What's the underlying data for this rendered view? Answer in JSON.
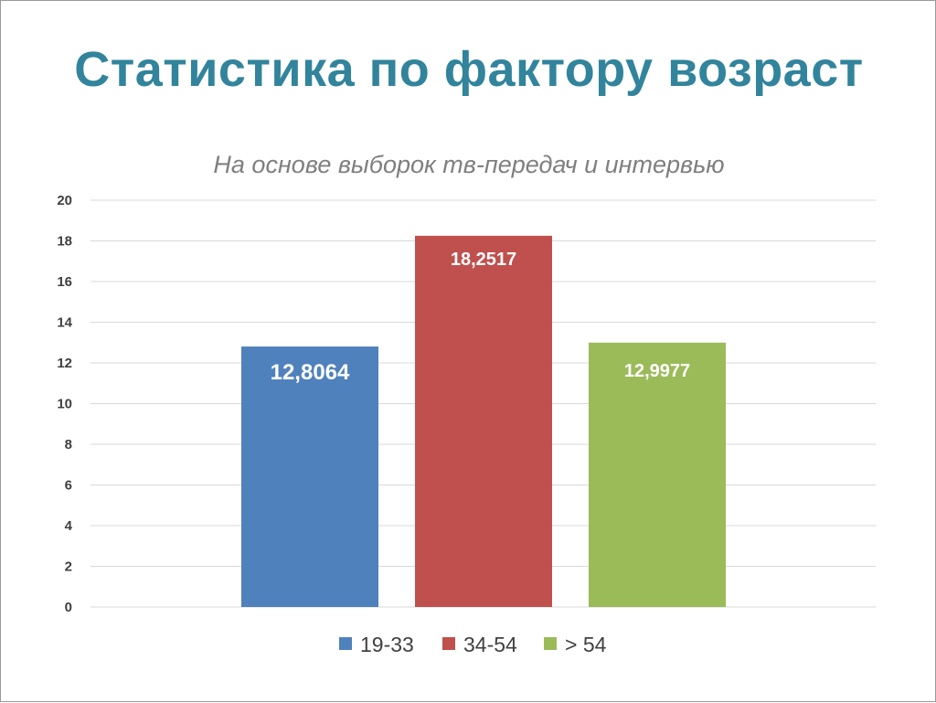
{
  "slide": {
    "title": "Статистика по фактору возраст"
  },
  "chart_data": {
    "type": "bar",
    "title": "На основе выборок тв-передач и интервью",
    "xlabel": "",
    "ylabel": "",
    "ylim": [
      0,
      20
    ],
    "yticks": [
      "0",
      "2",
      "4",
      "6",
      "8",
      "10",
      "12",
      "14",
      "16",
      "18",
      "20"
    ],
    "grid": true,
    "legend_position": "bottom",
    "series": [
      {
        "name": "19-33",
        "value": 12.8064,
        "label": "12,8064",
        "color": "#4f81bd"
      },
      {
        "name": "34-54",
        "value": 18.2517,
        "label": "18,2517",
        "color": "#c0504d"
      },
      {
        "name": "> 54",
        "value": 12.9977,
        "label": "12,9977",
        "color": "#9bbb59"
      }
    ]
  }
}
